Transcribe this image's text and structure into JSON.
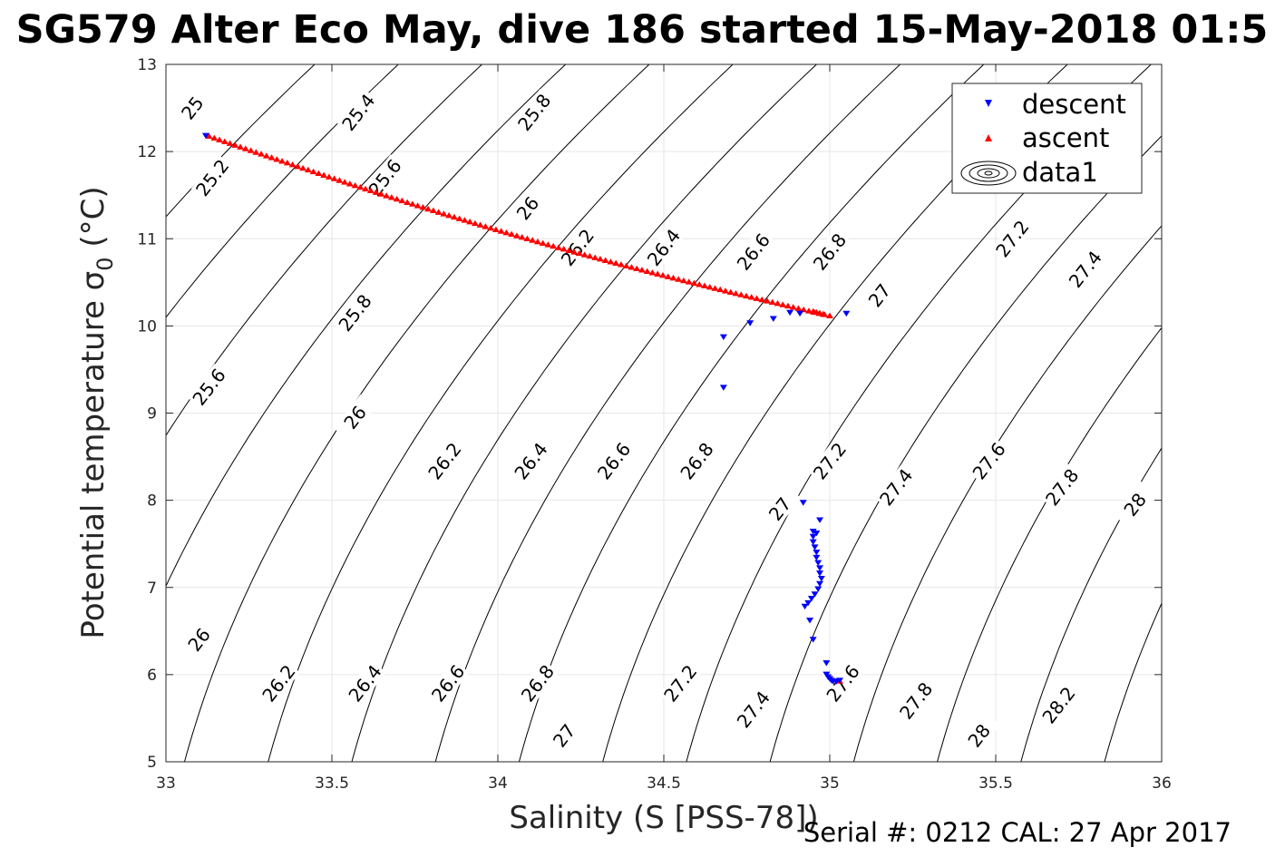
{
  "chart_data": {
    "type": "scatter",
    "title": "SG579 Alter Eco May, dive 186 started 15-May-2018 01:5",
    "xlabel": "Salinity (S [PSS-78])",
    "ylabel": "Potential temperature σ",
    "ylabel_sub": "0",
    "ylabel_unit": " (°C)",
    "xlim": [
      33,
      36
    ],
    "ylim": [
      5,
      13
    ],
    "xticks": [
      "33",
      "33.5",
      "34",
      "34.5",
      "35",
      "35.5",
      "36"
    ],
    "yticks": [
      "5",
      "6",
      "7",
      "8",
      "9",
      "10",
      "11",
      "12",
      "13"
    ],
    "grid": true,
    "legend_position": "top-right",
    "series": [
      {
        "name": "descent",
        "marker": "triangle-down",
        "color": "#0000ff",
        "points": [
          [
            33.12,
            12.18
          ],
          [
            34.68,
            9.87
          ],
          [
            34.76,
            10.03
          ],
          [
            34.83,
            10.08
          ],
          [
            34.88,
            10.15
          ],
          [
            34.91,
            10.14
          ],
          [
            35.05,
            10.14
          ],
          [
            34.68,
            9.29
          ],
          [
            34.92,
            7.97
          ],
          [
            34.97,
            7.77
          ],
          [
            34.95,
            7.64
          ],
          [
            34.96,
            7.62
          ],
          [
            34.95,
            7.58
          ],
          [
            34.95,
            7.52
          ],
          [
            34.955,
            7.46
          ],
          [
            34.96,
            7.4
          ],
          [
            34.96,
            7.34
          ],
          [
            34.965,
            7.28
          ],
          [
            34.97,
            7.22
          ],
          [
            34.97,
            7.16
          ],
          [
            34.975,
            7.1
          ],
          [
            34.97,
            7.04
          ],
          [
            34.965,
            6.98
          ],
          [
            34.955,
            6.92
          ],
          [
            34.945,
            6.87
          ],
          [
            34.935,
            6.82
          ],
          [
            34.925,
            6.78
          ],
          [
            34.94,
            6.62
          ],
          [
            34.95,
            6.4
          ],
          [
            34.99,
            6.13
          ],
          [
            34.99,
            6.0
          ],
          [
            34.995,
            5.97
          ],
          [
            35.0,
            5.95
          ],
          [
            35.005,
            5.93
          ],
          [
            35.01,
            5.92
          ],
          [
            35.02,
            5.92
          ],
          [
            35.03,
            5.93
          ]
        ]
      },
      {
        "name": "ascent",
        "marker": "triangle-up",
        "color": "#ff0000",
        "start": [
          33.13,
          12.18
        ],
        "end": [
          35.0,
          10.12
        ],
        "count": 120,
        "extra_points": [
          [
            34.95,
            10.17
          ],
          [
            34.96,
            10.16
          ],
          [
            34.97,
            10.15
          ],
          [
            34.98,
            10.14
          ],
          [
            35.03,
            5.93
          ]
        ]
      },
      {
        "name": "data1",
        "marker": "contour-icon",
        "color": "#000000"
      }
    ],
    "contours": [
      {
        "sigma": 25.0,
        "label": "25",
        "label_at": [
          33.08,
          12.5
        ]
      },
      {
        "sigma": 25.2,
        "label": "25.2",
        "label_at": [
          33.14,
          11.7
        ]
      },
      {
        "sigma": 25.4,
        "label": "25.4",
        "label_at": [
          33.58,
          12.45
        ]
      },
      {
        "sigma": 25.6,
        "label": "25.6",
        "label_at": [
          33.66,
          11.7
        ]
      },
      {
        "sigma": 25.6,
        "label": "25.6",
        "label_at": [
          33.13,
          9.3
        ]
      },
      {
        "sigma": 25.8,
        "label": "25.8",
        "label_at": [
          34.11,
          12.45
        ]
      },
      {
        "sigma": 25.8,
        "label": "25.8",
        "label_at": [
          33.57,
          10.15
        ]
      },
      {
        "sigma": 26.0,
        "label": "26",
        "label_at": [
          34.09,
          11.35
        ]
      },
      {
        "sigma": 26.0,
        "label": "26",
        "label_at": [
          33.57,
          8.95
        ]
      },
      {
        "sigma": 26.0,
        "label": "26",
        "label_at": [
          33.1,
          6.4
        ]
      },
      {
        "sigma": 26.2,
        "label": "26.2",
        "label_at": [
          34.24,
          10.9
        ]
      },
      {
        "sigma": 26.2,
        "label": "26.2",
        "label_at": [
          33.84,
          8.45
        ]
      },
      {
        "sigma": 26.2,
        "label": "26.2",
        "label_at": [
          33.34,
          5.9
        ]
      },
      {
        "sigma": 26.4,
        "label": "26.4",
        "label_at": [
          34.5,
          10.9
        ]
      },
      {
        "sigma": 26.4,
        "label": "26.4",
        "label_at": [
          34.1,
          8.45
        ]
      },
      {
        "sigma": 26.4,
        "label": "26.4",
        "label_at": [
          33.6,
          5.9
        ]
      },
      {
        "sigma": 26.6,
        "label": "26.6",
        "label_at": [
          34.77,
          10.85
        ]
      },
      {
        "sigma": 26.6,
        "label": "26.6",
        "label_at": [
          34.35,
          8.45
        ]
      },
      {
        "sigma": 26.6,
        "label": "26.6",
        "label_at": [
          33.85,
          5.9
        ]
      },
      {
        "sigma": 26.8,
        "label": "26.8",
        "label_at": [
          35.0,
          10.85
        ]
      },
      {
        "sigma": 26.8,
        "label": "26.8",
        "label_at": [
          34.6,
          8.45
        ]
      },
      {
        "sigma": 26.8,
        "label": "26.8",
        "label_at": [
          34.12,
          5.9
        ]
      },
      {
        "sigma": 27.0,
        "label": "27",
        "label_at": [
          35.15,
          10.35
        ]
      },
      {
        "sigma": 27.0,
        "label": "27",
        "label_at": [
          34.85,
          7.9
        ]
      },
      {
        "sigma": 27.0,
        "label": "27",
        "label_at": [
          34.2,
          5.3
        ]
      },
      {
        "sigma": 27.2,
        "label": "27.2",
        "label_at": [
          35.55,
          11.0
        ]
      },
      {
        "sigma": 27.2,
        "label": "27.2",
        "label_at": [
          35.0,
          8.45
        ]
      },
      {
        "sigma": 27.2,
        "label": "27.2",
        "label_at": [
          34.55,
          5.9
        ]
      },
      {
        "sigma": 27.4,
        "label": "27.4",
        "label_at": [
          35.77,
          10.65
        ]
      },
      {
        "sigma": 27.4,
        "label": "27.4",
        "label_at": [
          35.2,
          8.15
        ]
      },
      {
        "sigma": 27.4,
        "label": "27.4",
        "label_at": [
          34.77,
          5.6
        ]
      },
      {
        "sigma": 27.6,
        "label": "27.6",
        "label_at": [
          35.48,
          8.45
        ]
      },
      {
        "sigma": 27.6,
        "label": "27.6",
        "label_at": [
          35.04,
          5.9
        ]
      },
      {
        "sigma": 27.8,
        "label": "27.8",
        "label_at": [
          35.7,
          8.15
        ]
      },
      {
        "sigma": 27.8,
        "label": "27.8",
        "label_at": [
          35.26,
          5.7
        ]
      },
      {
        "sigma": 28.0,
        "label": "28",
        "label_at": [
          35.92,
          7.95
        ]
      },
      {
        "sigma": 28.0,
        "label": "28",
        "label_at": [
          35.45,
          5.3
        ]
      },
      {
        "sigma": 28.2,
        "label": "28.2",
        "label_at": [
          35.69,
          5.65
        ]
      },
      {
        "sigma": 28.4,
        "label": "",
        "label_at": null
      }
    ],
    "footer": "Serial #: 0212  CAL: 27 Apr 2017"
  }
}
